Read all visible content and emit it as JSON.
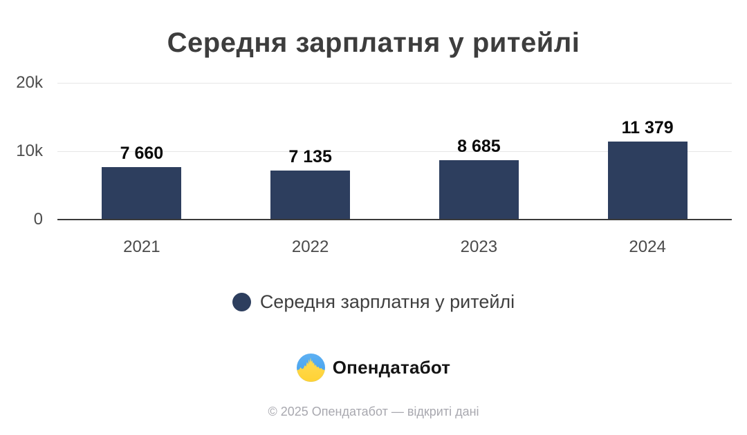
{
  "title": "Середня зарплатня у ритейлі",
  "chart_data": {
    "type": "bar",
    "title": "Середня зарплатня у ритейлі",
    "categories": [
      "2021",
      "2022",
      "2023",
      "2024"
    ],
    "values": [
      7660,
      7135,
      8685,
      11379
    ],
    "value_labels": [
      "7 660",
      "7 135",
      "8 685",
      "11 379"
    ],
    "series_name": "Середня зарплатня у ритейлі",
    "xlabel": "",
    "ylabel": "",
    "ylim": [
      0,
      20000
    ],
    "yticks": [
      {
        "value": 0,
        "label": "0"
      },
      {
        "value": 10000,
        "label": "10k"
      },
      {
        "value": 20000,
        "label": "20k"
      }
    ],
    "grid": true,
    "legend_position": "bottom",
    "bar_color": "#2d3e5e"
  },
  "legend": {
    "label": "Середня зарплатня у ритейлі",
    "marker_color": "#2d3e5e"
  },
  "branding": {
    "logo_icon": "opendatabot-logo-icon",
    "logo_text": "Опендатабот"
  },
  "footer": {
    "copyright": "© 2025 Опендатабот — відкриті дані"
  },
  "colors": {
    "bar": "#2d3e5e",
    "grid": "#e6e6e6",
    "axis": "#3a3a3a",
    "title_text": "#3d3d3d",
    "tick_text": "#4d4d4d",
    "footer_text": "#a8a8af",
    "logo_blue": "#4ba5ef",
    "logo_yellow": "#ffd94f"
  }
}
